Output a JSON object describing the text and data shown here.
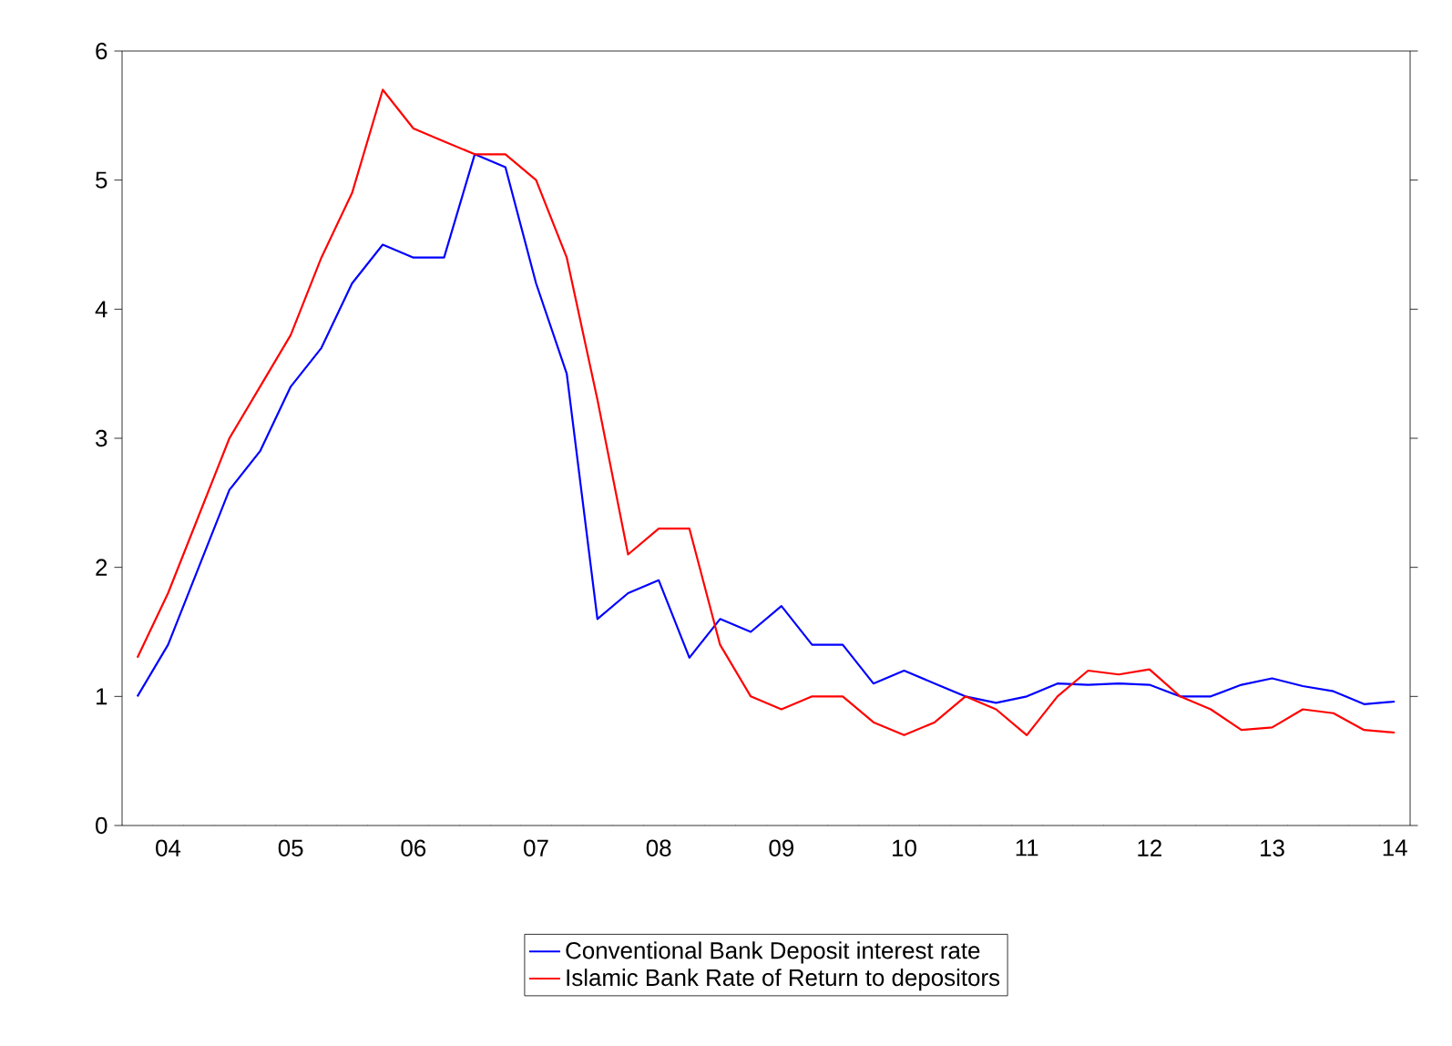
{
  "chart_data": {
    "type": "line",
    "categories": [
      null,
      "04",
      null,
      null,
      null,
      "05",
      null,
      null,
      null,
      "06",
      null,
      null,
      null,
      "07",
      null,
      null,
      null,
      "08",
      null,
      null,
      null,
      "09",
      null,
      null,
      null,
      "10",
      null,
      null,
      null,
      "11",
      null,
      null,
      null,
      "12",
      null,
      null,
      null,
      "13",
      null,
      null,
      null,
      "14"
    ],
    "series": [
      {
        "name": "Conventional Bank Deposit interest rate",
        "color": "#0000ff",
        "values": [
          1.0,
          1.4,
          2.0,
          2.6,
          2.9,
          3.4,
          3.7,
          4.2,
          4.5,
          4.4,
          4.4,
          5.2,
          5.1,
          4.2,
          3.5,
          1.6,
          1.8,
          1.9,
          1.3,
          1.6,
          1.5,
          1.7,
          1.4,
          1.4,
          1.1,
          1.2,
          1.1,
          1.0,
          0.95,
          1.0,
          1.1,
          1.09,
          1.1,
          1.09,
          1.0,
          1.0,
          1.09,
          1.14,
          1.08,
          1.04,
          0.94,
          0.96
        ]
      },
      {
        "name": "Islamic Bank Rate of Return to depositors",
        "color": "#ff0000",
        "values": [
          1.3,
          1.8,
          2.4,
          3.0,
          3.4,
          3.8,
          4.4,
          4.9,
          5.7,
          5.4,
          5.3,
          5.2,
          5.2,
          5.0,
          4.4,
          3.3,
          2.1,
          2.3,
          2.3,
          1.4,
          1.0,
          0.9,
          1.0,
          1.0,
          0.8,
          0.7,
          0.8,
          1.0,
          0.9,
          0.7,
          1.0,
          1.2,
          1.17,
          1.21,
          1.0,
          0.9,
          0.74,
          0.76,
          0.9,
          0.87,
          0.74,
          0.72
        ]
      }
    ],
    "ylim": [
      0,
      6
    ],
    "yticks": [
      0,
      1,
      2,
      3,
      4,
      5,
      6
    ],
    "legend": "bottom",
    "grid": false,
    "marker": "none",
    "line_style": "solid"
  }
}
